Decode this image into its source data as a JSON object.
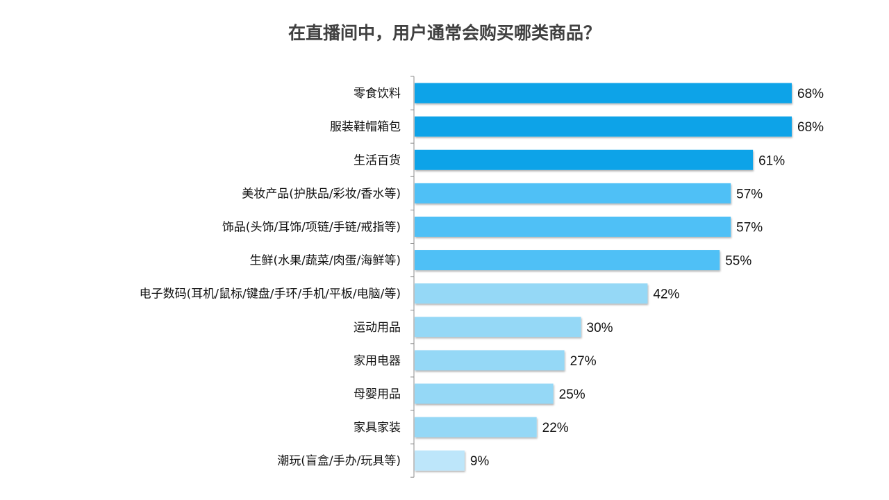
{
  "chart_data": {
    "type": "bar",
    "orientation": "horizontal",
    "title": "在直播间中，用户通常会购买哪类商品？",
    "categories": [
      "零食饮料",
      "服装鞋帽箱包",
      "生活百货",
      "美妆产品(护肤品/彩妆/香水等)",
      "饰品(头饰/耳饰/项链/手链/戒指等)",
      "生鲜(水果/蔬菜/肉蛋/海鲜等)",
      "电子数码(耳机/鼠标/键盘/手环/手机/平板/电脑/等)",
      "运动用品",
      "家用电器",
      "母婴用品",
      "家具家装",
      "潮玩(盲盒/手办/玩具等)"
    ],
    "values": [
      68,
      68,
      61,
      57,
      57,
      55,
      42,
      30,
      27,
      25,
      22,
      9
    ],
    "labels": [
      "68%",
      "68%",
      "61%",
      "57%",
      "57%",
      "55%",
      "42%",
      "30%",
      "27%",
      "25%",
      "22%",
      "9%"
    ],
    "colors": [
      "#0aa3e8",
      "#0aa3e8",
      "#0aa3e8",
      "#4fc0f6",
      "#4fc0f6",
      "#4fc0f6",
      "#95d8f6",
      "#95d8f6",
      "#95d8f6",
      "#95d8f6",
      "#95d8f6",
      "#bde6fa"
    ],
    "xlabel": "",
    "ylabel": "",
    "grid": false
  }
}
